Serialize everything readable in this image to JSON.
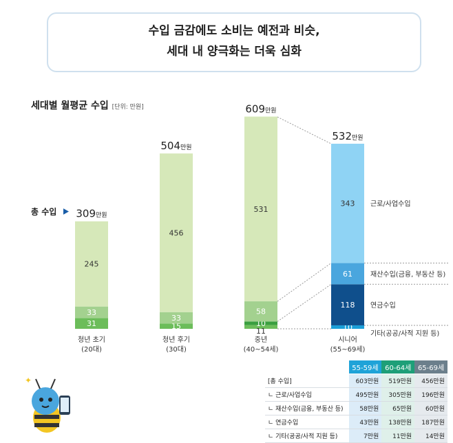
{
  "header": {
    "line1": "수입 금감에도 소비는 예전과 비슷,",
    "line2": "세대 내 양극화는 더욱 심화"
  },
  "chart_title": "세대별 월평균 수입",
  "chart_unit": "[단위: 만원]",
  "total_label": "총 수입",
  "chart_data": {
    "type": "bar",
    "stacked": true,
    "title": "세대별 월평균 수입",
    "unit": "만원",
    "categories": [
      {
        "name": "청년 초기",
        "sub": "(20대)"
      },
      {
        "name": "청년 후기",
        "sub": "(30대)"
      },
      {
        "name": "중년",
        "sub": "(40~54세)"
      },
      {
        "name": "시니어",
        "sub": "(55~69세)"
      }
    ],
    "totals": [
      "309",
      "504",
      "609",
      "532"
    ],
    "total_suffix": "만원",
    "segments": [
      [
        31,
        33,
        245
      ],
      [
        15,
        33,
        456
      ],
      [
        11,
        10,
        58,
        531
      ],
      [
        10,
        118,
        61,
        343
      ]
    ],
    "segment_labels": [
      "근로/사업수입",
      "재산수입(금융, 부동산 등)",
      "연금수입",
      "기타(공공/사적 지원 등)"
    ],
    "colors": {
      "green_dark": "#6cbd5a",
      "green_mid": "#a3d18f",
      "green_light": "#d6e8b9",
      "green_deep": "#3a9f40",
      "blue_light": "#8fd3f4",
      "blue_mid": "#4aa6de",
      "blue_dark": "#0f4f8c",
      "blue_cyan": "#1a9fd9"
    }
  },
  "table": {
    "headers": [
      "",
      "55-59세",
      "60-64세",
      "65-69세"
    ],
    "header_colors": [
      "#1fa3d8",
      "#1e9f78",
      "#6c7f8c"
    ],
    "rows": [
      [
        "[총 수입]",
        "603만원",
        "519만원",
        "456만원"
      ],
      [
        "ㄴ 근로/사업수입",
        "495만원",
        "305만원",
        "196만원"
      ],
      [
        "ㄴ 재산수입(금융, 부동산 등)",
        "58만원",
        "65만원",
        "60만원"
      ],
      [
        "ㄴ 연금수입",
        "43만원",
        "138만원",
        "187만원"
      ],
      [
        "ㄴ 기타(공공/사적 지원 등)",
        "7만원",
        "11만원",
        "14만원"
      ]
    ]
  }
}
